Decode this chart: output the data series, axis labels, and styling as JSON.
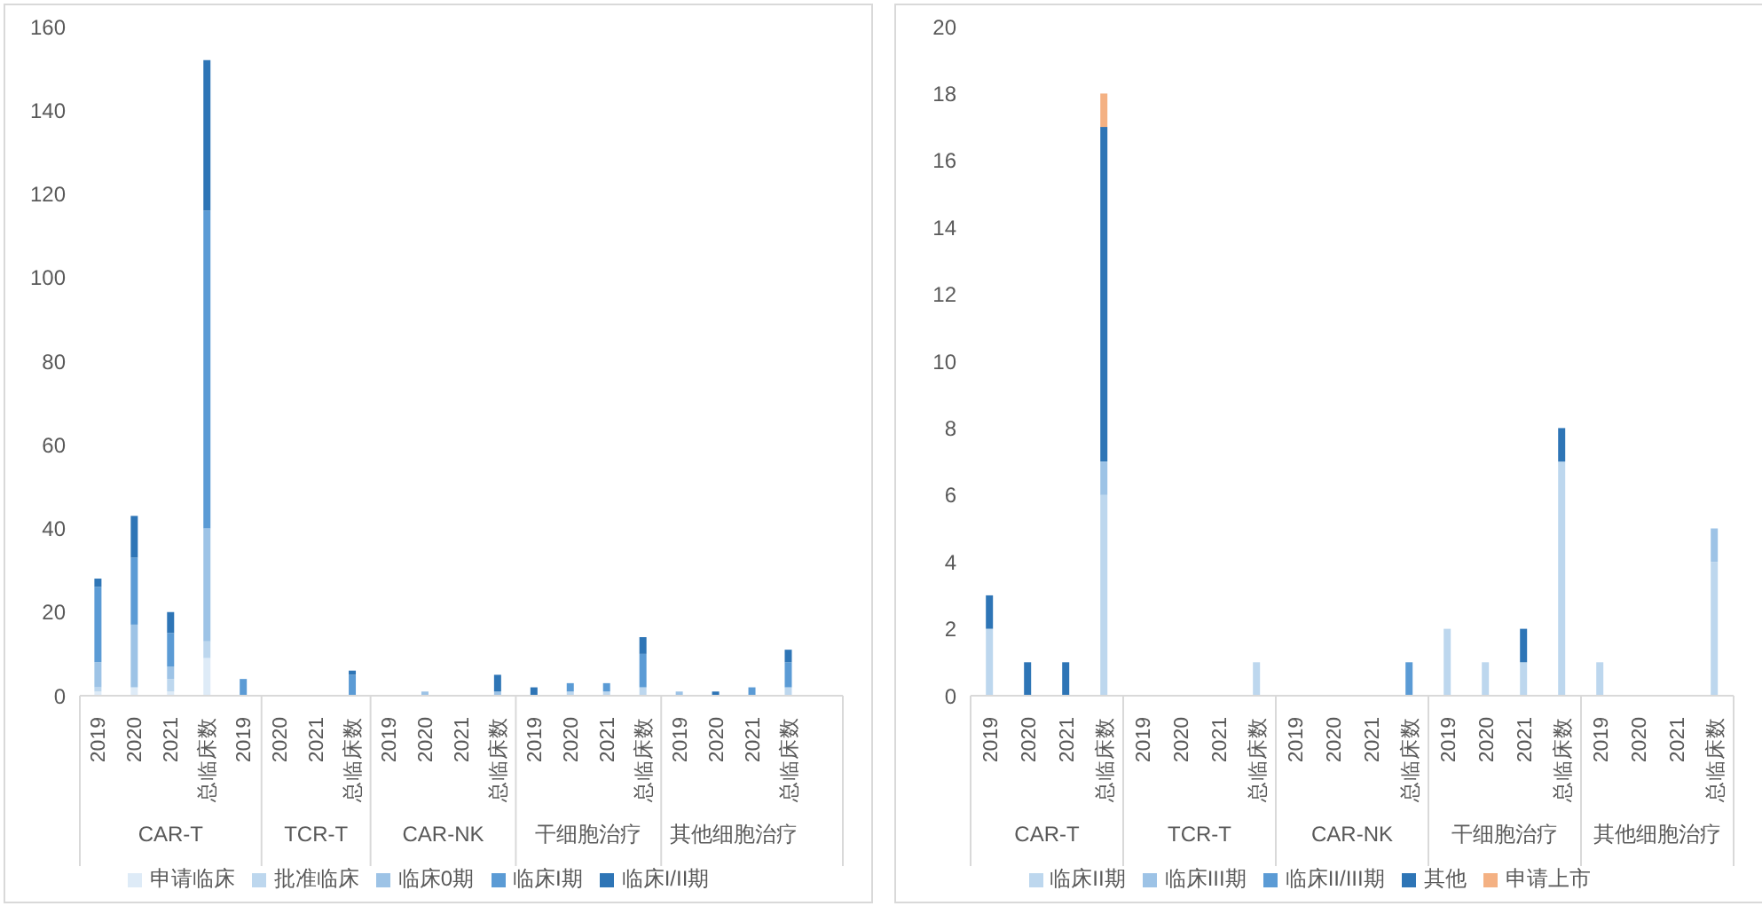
{
  "chart_data": [
    {
      "type": "bar",
      "stacked": true,
      "categories": [
        "2019",
        "2020",
        "2021",
        "总临床数",
        "2019",
        "2020",
        "2021",
        "总临床数",
        "2019",
        "2020",
        "2021",
        "总临床数",
        "2019",
        "2020",
        "2021",
        "总临床数",
        "2019",
        "2020",
        "2021",
        "总临床数",
        null
      ],
      "annotations": [
        "CAR-T",
        "TCR-T",
        "CAR-NK",
        "干细胞治疗",
        "其他细胞治疗"
      ],
      "series": [
        {
          "name": "申请临床",
          "color": "#deebf7",
          "values": [
            1,
            2,
            1,
            9,
            0,
            0,
            0,
            0,
            0,
            0,
            0,
            0,
            0,
            0,
            0,
            0,
            0,
            0,
            0,
            0,
            null
          ]
        },
        {
          "name": "批准临床",
          "color": "#bdd7ee",
          "values": [
            1,
            0,
            3,
            4,
            0,
            0,
            0,
            0,
            0,
            0,
            0,
            0,
            0,
            1,
            1,
            2,
            0,
            0,
            0,
            2,
            null
          ]
        },
        {
          "name": "临床0期",
          "color": "#9dc3e6",
          "values": [
            6,
            15,
            3,
            27,
            0,
            0,
            0,
            0,
            0,
            1,
            0,
            1,
            0,
            0,
            0,
            0,
            1,
            0,
            0,
            0,
            null
          ]
        },
        {
          "name": "临床I期",
          "color": "#5b9bd5",
          "values": [
            18,
            16,
            8,
            76,
            4,
            0,
            0,
            5,
            0,
            0,
            0,
            0,
            0,
            2,
            2,
            8,
            0,
            0,
            2,
            6,
            null
          ]
        },
        {
          "name": "临床I/II期",
          "color": "#2e75b6",
          "values": [
            2,
            10,
            5,
            36,
            0,
            0,
            0,
            1,
            0,
            0,
            0,
            4,
            2,
            0,
            0,
            4,
            0,
            1,
            0,
            3,
            null
          ]
        }
      ],
      "ylim": [
        0,
        160
      ],
      "yticks": [
        0,
        20,
        40,
        60,
        80,
        100,
        120,
        140,
        160
      ],
      "grid": false,
      "legend": "bottom"
    },
    {
      "type": "bar",
      "stacked": true,
      "categories": [
        "2019",
        "2020",
        "2021",
        "总临床数",
        "2019",
        "2020",
        "2021",
        "总临床数",
        "2019",
        "2020",
        "2021",
        "总临床数",
        "2019",
        "2020",
        "2021",
        "总临床数",
        "2019",
        "2020",
        "2021",
        "总临床数"
      ],
      "annotations": [
        "CAR-T",
        "TCR-T",
        "CAR-NK",
        "干细胞治疗",
        "其他细胞治疗"
      ],
      "series": [
        {
          "name": "临床II期",
          "color": "#bdd7ee",
          "values": [
            2,
            0,
            0,
            6,
            0,
            0,
            0,
            1,
            0,
            0,
            0,
            0,
            2,
            1,
            1,
            7,
            1,
            0,
            0,
            4
          ]
        },
        {
          "name": "临床III期",
          "color": "#9dc3e6",
          "values": [
            0,
            0,
            0,
            1,
            0,
            0,
            0,
            0,
            0,
            0,
            0,
            0,
            0,
            0,
            0,
            0,
            0,
            0,
            0,
            1
          ]
        },
        {
          "name": "临床II/III期",
          "color": "#5b9bd5",
          "values": [
            0,
            0,
            0,
            0,
            0,
            0,
            0,
            0,
            0,
            0,
            0,
            1,
            0,
            0,
            0,
            0,
            0,
            0,
            0,
            0
          ]
        },
        {
          "name": "其他",
          "color": "#2e75b6",
          "values": [
            1,
            1,
            1,
            10,
            0,
            0,
            0,
            0,
            0,
            0,
            0,
            0,
            0,
            0,
            1,
            1,
            0,
            0,
            0,
            0
          ]
        },
        {
          "name": "申请上市",
          "color": "#f4b183",
          "values": [
            0,
            0,
            0,
            1,
            0,
            0,
            0,
            0,
            0,
            0,
            0,
            0,
            0,
            0,
            0,
            0,
            0,
            0,
            0,
            0
          ]
        }
      ],
      "ylim": [
        0,
        20
      ],
      "yticks": [
        0,
        2,
        4,
        6,
        8,
        10,
        12,
        14,
        16,
        18,
        20
      ],
      "grid": false,
      "legend": "bottom"
    }
  ]
}
